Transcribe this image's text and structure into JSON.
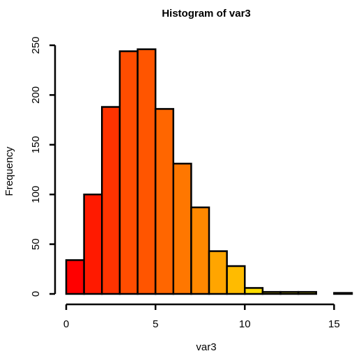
{
  "chart_data": {
    "type": "bar",
    "title": "Histogram of var3",
    "xlabel": "var3",
    "ylabel": "Frequency",
    "bin_edges": [
      0,
      1,
      2,
      3,
      4,
      5,
      6,
      7,
      8,
      9,
      10,
      11,
      12,
      13,
      14,
      15,
      16
    ],
    "values": [
      34,
      100,
      188,
      244,
      246,
      186,
      131,
      87,
      43,
      28,
      6,
      2,
      2,
      2,
      0,
      1
    ],
    "bar_colors": [
      "#FF0000",
      "#FF1A00",
      "#FF3300",
      "#FF4D00",
      "#FF5500",
      "#FF6600",
      "#FF7700",
      "#FF8800",
      "#FFA500",
      "#FFBB00",
      "#FFDD00",
      "#FFEE00",
      "#FFF200",
      "#FFF500",
      "#FFFA00",
      "#FFFF00"
    ],
    "xlim": [
      0,
      16
    ],
    "ylim": [
      0,
      250
    ],
    "x_ticks": [
      0,
      5,
      10,
      15
    ],
    "x_tick_labels": [
      "0",
      "5",
      "10",
      "15"
    ],
    "y_ticks": [
      0,
      50,
      100,
      150,
      200,
      250
    ],
    "y_tick_labels": [
      "0",
      "50",
      "100",
      "150",
      "200",
      "250"
    ],
    "grid": false,
    "legend": "none"
  }
}
